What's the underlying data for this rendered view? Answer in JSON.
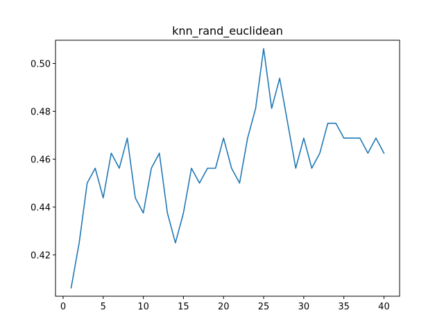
{
  "chart_data": {
    "type": "line",
    "title": "knn_rand_euclidean",
    "xlabel": "",
    "ylabel": "",
    "xlim": [
      -0.95,
      41.95
    ],
    "ylim": [
      0.4027,
      0.5097
    ],
    "x_ticks": [
      0,
      5,
      10,
      15,
      20,
      25,
      30,
      35,
      40
    ],
    "x_tick_labels": [
      "0",
      "5",
      "10",
      "15",
      "20",
      "25",
      "30",
      "35",
      "40"
    ],
    "y_ticks": [
      0.42,
      0.44,
      0.46,
      0.48,
      0.5
    ],
    "y_tick_labels": [
      "0.42",
      "0.44",
      "0.46",
      "0.48",
      "0.50"
    ],
    "grid": false,
    "series": [
      {
        "color": "#1f77b4",
        "x": [
          1,
          2,
          3,
          4,
          5,
          6,
          7,
          8,
          9,
          10,
          11,
          12,
          13,
          14,
          15,
          16,
          17,
          18,
          19,
          20,
          21,
          22,
          23,
          24,
          25,
          26,
          27,
          28,
          29,
          30,
          31,
          32,
          33,
          34,
          35,
          36,
          37,
          38,
          39,
          40
        ],
        "values": [
          0.4062,
          0.425,
          0.45,
          0.4562,
          0.4438,
          0.4625,
          0.4562,
          0.4688,
          0.4438,
          0.4375,
          0.4562,
          0.4625,
          0.4375,
          0.425,
          0.4375,
          0.4562,
          0.45,
          0.4562,
          0.4562,
          0.4688,
          0.4562,
          0.45,
          0.4688,
          0.4812,
          0.5062,
          0.4812,
          0.4938,
          0.475,
          0.4562,
          0.4688,
          0.4562,
          0.4625,
          0.475,
          0.475,
          0.4688,
          0.4688,
          0.4688,
          0.4625,
          0.4688,
          0.4625
        ]
      }
    ]
  }
}
